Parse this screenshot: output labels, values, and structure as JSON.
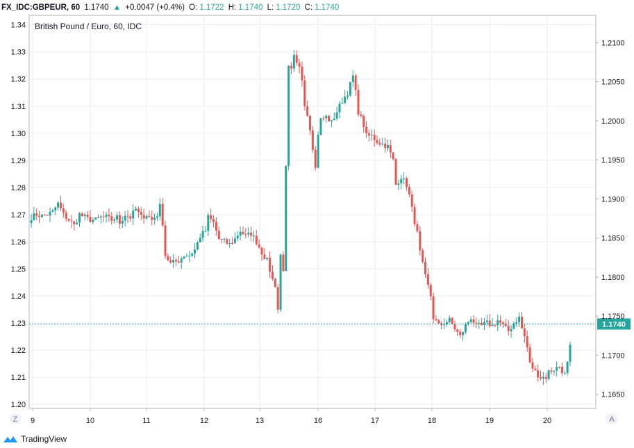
{
  "header": {
    "symbol": "FX_IDC:GBPEUR, 60",
    "last": "1.1740",
    "arrow": "▲",
    "change": "+0.0047 (+0.4%)",
    "o_label": "O:",
    "o_value": "1.1722",
    "h_label": "H:",
    "h_value": "1.1740",
    "l_label": "L:",
    "l_value": "1.1720",
    "c_label": "C:",
    "c_value": "1.1740"
  },
  "chart_data": {
    "type": "candlestick",
    "title": "British Pound / Euro, 60, IDC",
    "left_axis": {
      "ticks": [
        "1.34",
        "1.33",
        "1.32",
        "1.31",
        "1.30",
        "1.29",
        "1.28",
        "1.27",
        "1.26",
        "1.25",
        "1.24",
        "1.23",
        "1.22",
        "1.21",
        "1.20"
      ],
      "ylim": [
        1.1985,
        1.3435
      ]
    },
    "right_axis": {
      "ticks": [
        "1.2100",
        "1.2050",
        "1.2000",
        "1.1950",
        "1.1900",
        "1.1850",
        "1.1800",
        "1.1750",
        "1.1700",
        "1.1650"
      ],
      "ylim": [
        1.1632,
        1.2135
      ]
    },
    "x_ticks": [
      "9",
      "10",
      "11",
      "12",
      "13",
      "16",
      "17",
      "18",
      "19",
      "20"
    ],
    "current_price": 1.174,
    "current_price_label": "1.1740",
    "grid": true,
    "colors": {
      "up": "#26a69a",
      "down": "#ef5350",
      "grid": "#e9eef3",
      "axis_text": "#131722"
    },
    "series_points": [
      [
        0,
        1.269
      ],
      [
        2,
        1.27
      ],
      [
        4,
        1.2695
      ],
      [
        6,
        1.27
      ],
      [
        8,
        1.271
      ],
      [
        10,
        1.274
      ],
      [
        11,
        1.272
      ],
      [
        12,
        1.27
      ],
      [
        14,
        1.268
      ],
      [
        16,
        1.266
      ],
      [
        18,
        1.27
      ],
      [
        20,
        1.269
      ],
      [
        22,
        1.268
      ],
      [
        24,
        1.268
      ],
      [
        26,
        1.269
      ],
      [
        28,
        1.269
      ],
      [
        30,
        1.268
      ],
      [
        32,
        1.269
      ],
      [
        33,
        1.267
      ],
      [
        35,
        1.27
      ],
      [
        37,
        1.269
      ],
      [
        39,
        1.272
      ],
      [
        41,
        1.269
      ],
      [
        43,
        1.27
      ],
      [
        45,
        1.268
      ],
      [
        47,
        1.27
      ],
      [
        48,
        1.273
      ],
      [
        49,
        1.267
      ],
      [
        50,
        1.255
      ],
      [
        52,
        1.252
      ],
      [
        55,
        1.253
      ],
      [
        57,
        1.255
      ],
      [
        59,
        1.255
      ],
      [
        61,
        1.257
      ],
      [
        63,
        1.262
      ],
      [
        65,
        1.264
      ],
      [
        66,
        1.269
      ],
      [
        68,
        1.267
      ],
      [
        70,
        1.261
      ],
      [
        72,
        1.26
      ],
      [
        74,
        1.259
      ],
      [
        76,
        1.261
      ],
      [
        78,
        1.264
      ],
      [
        80,
        1.262
      ],
      [
        82,
        1.263
      ],
      [
        84,
        1.26
      ],
      [
        86,
        1.256
      ],
      [
        88,
        1.253
      ],
      [
        90,
        1.246
      ],
      [
        91,
        1.244
      ],
      [
        92,
        1.235
      ],
      [
        93,
        1.255
      ],
      [
        94,
        1.25
      ],
      [
        95,
        1.287
      ],
      [
        96,
        1.324
      ],
      [
        97,
        1.323
      ],
      [
        98,
        1.328
      ],
      [
        99,
        1.325
      ],
      [
        100,
        1.324
      ],
      [
        101,
        1.32
      ],
      [
        102,
        1.311
      ],
      [
        103,
        1.307
      ],
      [
        104,
        1.302
      ],
      [
        105,
        1.295
      ],
      [
        106,
        1.287
      ],
      [
        107,
        1.3
      ],
      [
        108,
        1.305
      ],
      [
        110,
        1.306
      ],
      [
        112,
        1.304
      ],
      [
        114,
        1.308
      ],
      [
        116,
        1.312
      ],
      [
        118,
        1.315
      ],
      [
        120,
        1.321
      ],
      [
        121,
        1.315
      ],
      [
        122,
        1.308
      ],
      [
        124,
        1.303
      ],
      [
        125,
        1.299
      ],
      [
        127,
        1.299
      ],
      [
        129,
        1.297
      ],
      [
        131,
        1.296
      ],
      [
        133,
        1.295
      ],
      [
        135,
        1.29
      ],
      [
        136,
        1.281
      ],
      [
        138,
        1.284
      ],
      [
        140,
        1.281
      ],
      [
        141,
        1.277
      ],
      [
        142,
        1.272
      ],
      [
        144,
        1.263
      ],
      [
        145,
        1.256
      ],
      [
        147,
        1.247
      ],
      [
        149,
        1.24
      ],
      [
        150,
        1.232
      ],
      [
        152,
        1.229
      ],
      [
        154,
        1.23
      ],
      [
        156,
        1.231
      ],
      [
        158,
        1.228
      ],
      [
        160,
        1.225
      ],
      [
        162,
        1.229
      ],
      [
        164,
        1.232
      ],
      [
        166,
        1.229
      ],
      [
        168,
        1.229
      ],
      [
        170,
        1.23
      ],
      [
        172,
        1.229
      ],
      [
        174,
        1.231
      ],
      [
        176,
        1.229
      ],
      [
        178,
        1.227
      ],
      [
        180,
        1.23
      ],
      [
        182,
        1.232
      ],
      [
        183,
        1.228
      ],
      [
        184,
        1.225
      ],
      [
        185,
        1.221
      ],
      [
        186,
        1.215
      ],
      [
        188,
        1.212
      ],
      [
        190,
        1.21
      ],
      [
        192,
        1.21
      ],
      [
        193,
        1.212
      ],
      [
        195,
        1.213
      ],
      [
        197,
        1.214
      ],
      [
        199,
        1.211
      ],
      [
        200,
        1.215
      ],
      [
        201,
        1.222
      ]
    ]
  },
  "axis_buttons": {
    "left": "Z",
    "right": "A"
  },
  "footer": {
    "brand": "TradingView"
  }
}
